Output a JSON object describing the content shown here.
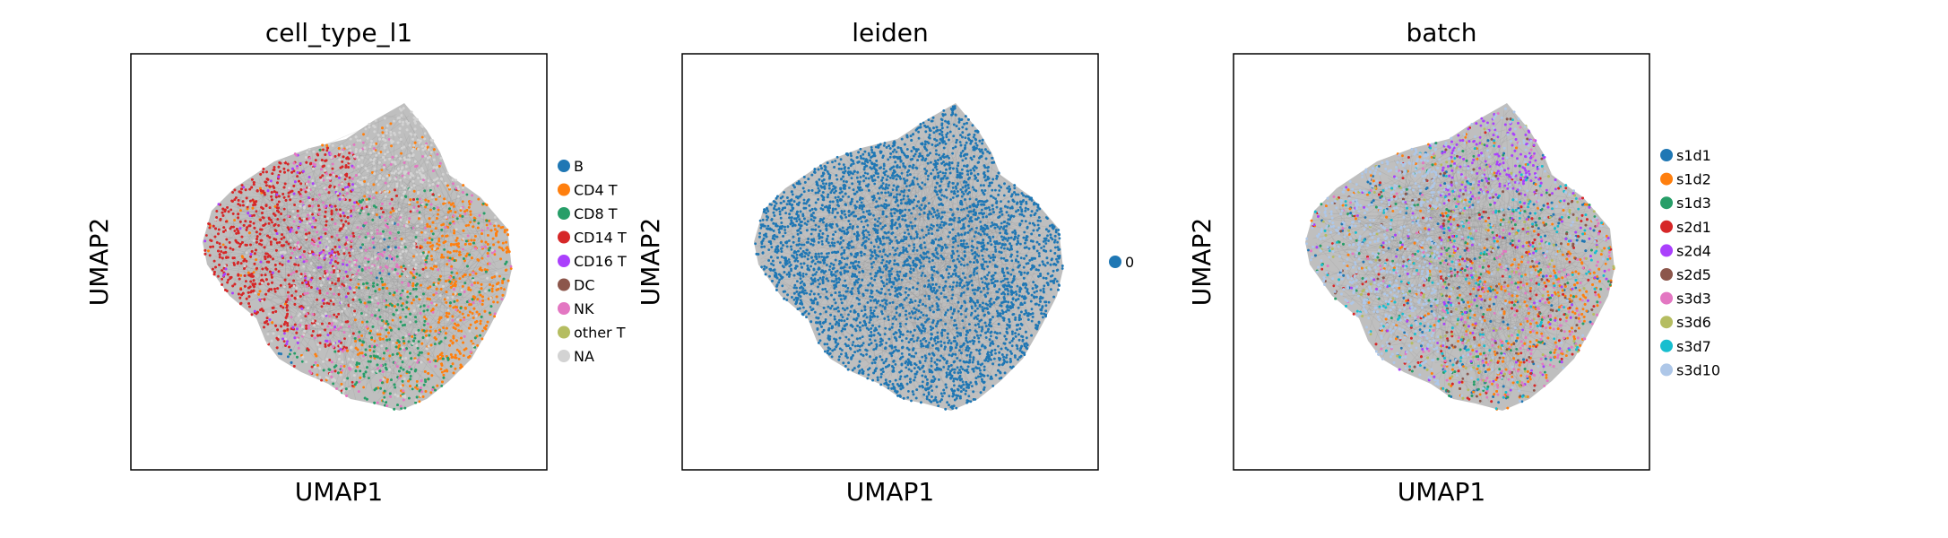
{
  "chart_data": [
    {
      "type": "scatter",
      "title": "cell_type_l1",
      "xlabel": "UMAP1",
      "ylabel": "UMAP2",
      "grid": false,
      "legend": "right",
      "series": [
        {
          "name": "B",
          "color": "#1f77b4"
        },
        {
          "name": "CD4 T",
          "color": "#ff7f0e"
        },
        {
          "name": "CD8 T",
          "color": "#279e68"
        },
        {
          "name": "CD14 T",
          "color": "#d62728"
        },
        {
          "name": "CD16 T",
          "color": "#aa40fc"
        },
        {
          "name": "DC",
          "color": "#8c564b"
        },
        {
          "name": "NK",
          "color": "#e377c2"
        },
        {
          "name": "other T",
          "color": "#b5bd61"
        },
        {
          "name": "NA",
          "color": "#d3d3d3"
        }
      ]
    },
    {
      "type": "scatter",
      "title": "leiden",
      "xlabel": "UMAP1",
      "ylabel": "UMAP2",
      "grid": false,
      "legend": "right",
      "series": [
        {
          "name": "0",
          "color": "#1f77b4"
        }
      ]
    },
    {
      "type": "scatter",
      "title": "batch",
      "xlabel": "UMAP1",
      "ylabel": "UMAP2",
      "grid": false,
      "legend": "right",
      "series": [
        {
          "name": "s1d1",
          "color": "#1f77b4"
        },
        {
          "name": "s1d2",
          "color": "#ff7f0e"
        },
        {
          "name": "s1d3",
          "color": "#279e68"
        },
        {
          "name": "s2d1",
          "color": "#d62728"
        },
        {
          "name": "s2d4",
          "color": "#aa40fc"
        },
        {
          "name": "s2d5",
          "color": "#8c564b"
        },
        {
          "name": "s3d3",
          "color": "#e377c2"
        },
        {
          "name": "s3d6",
          "color": "#b5bd61"
        },
        {
          "name": "s3d7",
          "color": "#17becf"
        },
        {
          "name": "s3d10",
          "color": "#aec7e8"
        }
      ]
    }
  ],
  "edge_color": "#808080"
}
